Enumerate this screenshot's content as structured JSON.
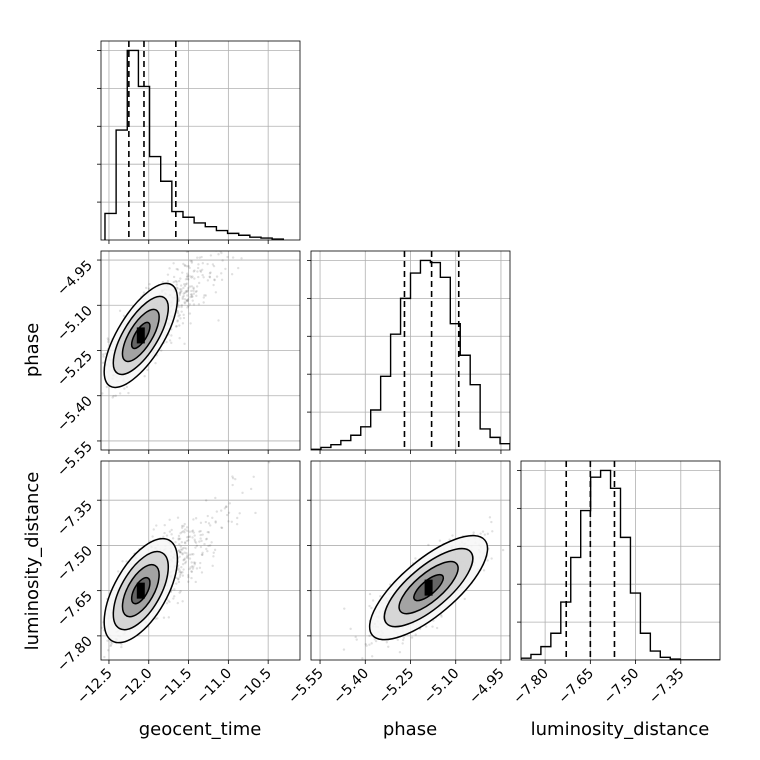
{
  "chart_data": {
    "type": "corner",
    "parameters": [
      "geocent_time",
      "phase",
      "luminosity_distance"
    ],
    "grid": true,
    "axes": {
      "geocent_time": {
        "lim": [
          -12.6,
          -10.1
        ],
        "ticks": [
          -12.5,
          -12.0,
          -11.5,
          -11.0,
          -10.5
        ],
        "tick_labels": [
          "−12.5",
          "−12.0",
          "−11.5",
          "−11.0",
          "−10.5"
        ]
      },
      "phase": {
        "lim": [
          -5.58,
          -4.92
        ],
        "ticks": [
          -5.55,
          -5.4,
          -5.25,
          -5.1,
          -4.95
        ],
        "tick_labels": [
          "−5.55",
          "−5.40",
          "−5.25",
          "−5.10",
          "−4.95"
        ]
      },
      "luminosity_distance": {
        "lim": [
          -7.88,
          -7.22
        ],
        "ticks": [
          -7.8,
          -7.65,
          -7.5,
          -7.35
        ],
        "tick_labels": [
          "−7.80",
          "−7.65",
          "−7.50",
          "−7.35"
        ]
      }
    },
    "histograms": [
      {
        "parameter": "geocent_time",
        "bins": [
          -12.55,
          -12.41,
          -12.27,
          -12.13,
          -11.99,
          -11.85,
          -11.71,
          -11.57,
          -11.43,
          -11.29,
          -11.15,
          -11.01,
          -10.87,
          -10.73,
          -10.59,
          -10.45,
          -10.31
        ],
        "counts": [
          0.14,
          0.58,
          1.0,
          0.81,
          0.44,
          0.31,
          0.15,
          0.12,
          0.09,
          0.07,
          0.05,
          0.035,
          0.025,
          0.015,
          0.01,
          0.005
        ],
        "quantiles": [
          -12.25,
          -12.06,
          -11.66
        ]
      },
      {
        "parameter": "phase",
        "bins": [
          -5.58,
          -5.547,
          -5.514,
          -5.481,
          -5.448,
          -5.415,
          -5.382,
          -5.349,
          -5.316,
          -5.283,
          -5.25,
          -5.217,
          -5.184,
          -5.151,
          -5.118,
          -5.085,
          -5.052,
          -5.019,
          -4.986,
          -4.953,
          -4.92
        ],
        "counts": [
          0.003,
          0.012,
          0.025,
          0.045,
          0.07,
          0.11,
          0.19,
          0.35,
          0.55,
          0.72,
          0.84,
          0.9,
          0.89,
          0.82,
          0.6,
          0.45,
          0.31,
          0.1,
          0.06,
          0.03
        ],
        "quantiles": [
          -5.27,
          -5.18,
          -5.09
        ]
      },
      {
        "parameter": "luminosity_distance",
        "bins": [
          -7.88,
          -7.847,
          -7.814,
          -7.781,
          -7.748,
          -7.715,
          -7.682,
          -7.649,
          -7.616,
          -7.583,
          -7.55,
          -7.517,
          -7.484,
          -7.451,
          -7.418,
          -7.385,
          -7.352,
          -7.319,
          -7.286,
          -7.253,
          -7.22
        ],
        "counts": [
          0.008,
          0.025,
          0.06,
          0.12,
          0.26,
          0.46,
          0.67,
          0.82,
          0.85,
          0.77,
          0.55,
          0.3,
          0.12,
          0.04,
          0.012,
          0.004,
          0.0,
          0.0,
          0.0,
          0.0
        ],
        "quantiles": [
          -7.73,
          -7.65,
          -7.57
        ]
      }
    ],
    "scatter_2d": [
      {
        "x": "geocent_time",
        "y": "phase",
        "center": [
          -12.1,
          -5.2
        ],
        "sigma": [
          0.2,
          0.075
        ],
        "correlation": 0.7,
        "tail_x": 0.6,
        "n_points": 900
      },
      {
        "x": "geocent_time",
        "y": "luminosity_distance",
        "center": [
          -12.1,
          -7.65
        ],
        "sigma": [
          0.2,
          0.075
        ],
        "correlation": 0.6,
        "tail_x": 0.6,
        "n_points": 900
      },
      {
        "x": "phase",
        "y": "luminosity_distance",
        "center": [
          -5.19,
          -7.64
        ],
        "sigma": [
          0.085,
          0.075
        ],
        "correlation": 0.75,
        "tail_x": 0,
        "n_points": 900
      }
    ],
    "contour_levels_sigma": [
      0.5,
      1.0,
      1.5,
      2.0
    ]
  }
}
